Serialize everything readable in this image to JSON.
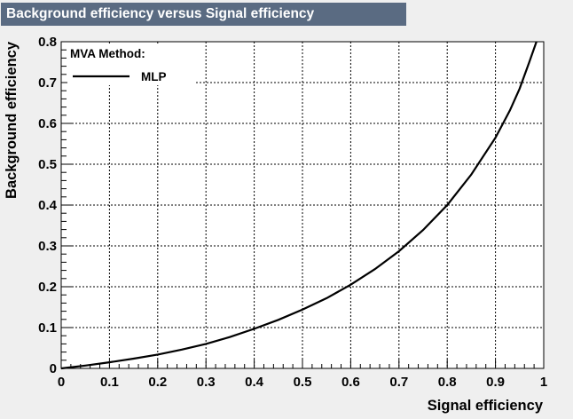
{
  "chart_data": {
    "type": "line",
    "title": "Background efficiency versus Signal efficiency",
    "xlabel": "Signal efficiency",
    "ylabel": "Background efficiency",
    "xlim": [
      0,
      1
    ],
    "ylim": [
      0,
      0.8
    ],
    "x_ticks": [
      "0",
      "0.1",
      "0.2",
      "0.3",
      "0.4",
      "0.5",
      "0.6",
      "0.7",
      "0.8",
      "0.9",
      "1"
    ],
    "y_ticks": [
      "0",
      "0.1",
      "0.2",
      "0.3",
      "0.4",
      "0.5",
      "0.6",
      "0.7",
      "0.8"
    ],
    "grid": true,
    "legend": {
      "header": "MVA Method:",
      "placement": "top-left"
    },
    "series": [
      {
        "name": "MLP",
        "color": "#000000",
        "x": [
          0.0,
          0.05,
          0.1,
          0.15,
          0.2,
          0.25,
          0.3,
          0.35,
          0.4,
          0.45,
          0.5,
          0.55,
          0.6,
          0.65,
          0.7,
          0.75,
          0.8,
          0.85,
          0.9,
          0.93,
          0.95,
          0.97,
          0.985
        ],
        "y": [
          0.0,
          0.007,
          0.015,
          0.024,
          0.034,
          0.046,
          0.06,
          0.077,
          0.097,
          0.119,
          0.144,
          0.172,
          0.205,
          0.243,
          0.287,
          0.339,
          0.4,
          0.475,
          0.565,
          0.632,
          0.685,
          0.75,
          0.8
        ]
      }
    ]
  }
}
